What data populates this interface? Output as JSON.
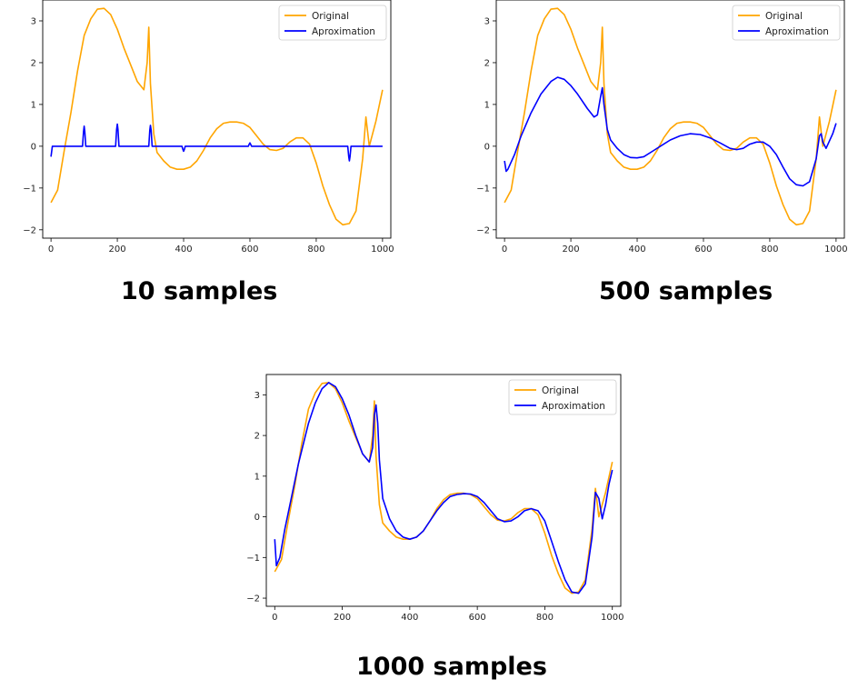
{
  "colors": {
    "original": "#ffa500",
    "approximation": "#0000ff",
    "axes": "#000000",
    "background": "#ffffff"
  },
  "legend_labels": [
    "Original",
    "Aproximation"
  ],
  "captions": [
    "10 samples",
    "500 samples",
    "1000 samples"
  ],
  "chart_data": [
    {
      "type": "line",
      "title": "",
      "caption": "10 samples",
      "xlim": [
        -25,
        1025
      ],
      "ylim": [
        -2.2,
        3.5
      ],
      "xticks": [
        "0",
        "200",
        "400",
        "600",
        "800",
        "1000"
      ],
      "yticks": [
        "-2",
        "-1",
        "0",
        "1",
        "2",
        "3"
      ],
      "legend_position": "top-right",
      "series": [
        {
          "name": "Original",
          "x": [
            0,
            20,
            40,
            60,
            80,
            100,
            120,
            140,
            160,
            180,
            200,
            220,
            240,
            260,
            280,
            290,
            295,
            300,
            310,
            320,
            340,
            360,
            380,
            400,
            420,
            440,
            460,
            480,
            500,
            520,
            540,
            560,
            580,
            600,
            620,
            640,
            660,
            680,
            700,
            720,
            740,
            760,
            780,
            800,
            820,
            840,
            860,
            880,
            900,
            920,
            940,
            950,
            960,
            980,
            1000
          ],
          "y": [
            -1.35,
            -1.05,
            -0.1,
            0.8,
            1.8,
            2.65,
            3.05,
            3.28,
            3.3,
            3.15,
            2.8,
            2.35,
            1.95,
            1.55,
            1.35,
            2.0,
            2.85,
            1.5,
            0.3,
            -0.15,
            -0.35,
            -0.5,
            -0.55,
            -0.55,
            -0.5,
            -0.35,
            -0.1,
            0.2,
            0.42,
            0.55,
            0.58,
            0.58,
            0.55,
            0.45,
            0.25,
            0.05,
            -0.08,
            -0.1,
            -0.05,
            0.1,
            0.2,
            0.2,
            0.05,
            -0.4,
            -0.95,
            -1.4,
            -1.75,
            -1.88,
            -1.85,
            -1.55,
            -0.3,
            0.7,
            0.0,
            0.6,
            1.35
          ]
        },
        {
          "name": "Aproximation",
          "x": [
            0,
            4,
            8,
            95,
            98,
            100,
            102,
            105,
            195,
            198,
            200,
            202,
            205,
            295,
            298,
            300,
            302,
            305,
            395,
            398,
            400,
            402,
            405,
            595,
            598,
            600,
            602,
            605,
            895,
            898,
            900,
            902,
            905,
            1000
          ],
          "y": [
            -0.25,
            0.0,
            0.0,
            0.0,
            0.35,
            0.48,
            0.35,
            0.0,
            0.0,
            0.4,
            0.53,
            0.4,
            0.0,
            0.0,
            0.38,
            0.5,
            0.38,
            0.0,
            0.0,
            -0.08,
            -0.12,
            -0.08,
            0.0,
            0.0,
            0.05,
            0.08,
            0.05,
            0.0,
            0.0,
            -0.25,
            -0.35,
            -0.25,
            0.0,
            0.0
          ]
        }
      ]
    },
    {
      "type": "line",
      "title": "",
      "caption": "500 samples",
      "xlim": [
        -25,
        1025
      ],
      "ylim": [
        -2.2,
        3.5
      ],
      "xticks": [
        "0",
        "200",
        "400",
        "600",
        "800",
        "1000"
      ],
      "yticks": [
        "-2",
        "-1",
        "0",
        "1",
        "2",
        "3"
      ],
      "legend_position": "top-right",
      "series": [
        {
          "name": "Original",
          "x": [
            0,
            20,
            40,
            60,
            80,
            100,
            120,
            140,
            160,
            180,
            200,
            220,
            240,
            260,
            280,
            290,
            295,
            300,
            310,
            320,
            340,
            360,
            380,
            400,
            420,
            440,
            460,
            480,
            500,
            520,
            540,
            560,
            580,
            600,
            620,
            640,
            660,
            680,
            700,
            720,
            740,
            760,
            780,
            800,
            820,
            840,
            860,
            880,
            900,
            920,
            940,
            950,
            960,
            980,
            1000
          ],
          "y": [
            -1.35,
            -1.05,
            -0.1,
            0.8,
            1.8,
            2.65,
            3.05,
            3.28,
            3.3,
            3.15,
            2.8,
            2.35,
            1.95,
            1.55,
            1.35,
            2.0,
            2.85,
            1.5,
            0.3,
            -0.15,
            -0.35,
            -0.5,
            -0.55,
            -0.55,
            -0.5,
            -0.35,
            -0.1,
            0.2,
            0.42,
            0.55,
            0.58,
            0.58,
            0.55,
            0.45,
            0.25,
            0.05,
            -0.08,
            -0.1,
            -0.05,
            0.1,
            0.2,
            0.2,
            0.05,
            -0.4,
            -0.95,
            -1.4,
            -1.75,
            -1.88,
            -1.85,
            -1.55,
            -0.3,
            0.7,
            0.0,
            0.6,
            1.35
          ]
        },
        {
          "name": "Aproximation",
          "x": [
            0,
            5,
            10,
            30,
            50,
            80,
            110,
            140,
            160,
            180,
            200,
            220,
            250,
            270,
            280,
            290,
            295,
            300,
            310,
            320,
            340,
            360,
            380,
            400,
            420,
            450,
            480,
            500,
            530,
            560,
            590,
            620,
            650,
            680,
            700,
            720,
            740,
            760,
            780,
            800,
            820,
            840,
            860,
            880,
            900,
            920,
            940,
            950,
            955,
            960,
            970,
            990,
            1000
          ],
          "y": [
            -0.35,
            -0.6,
            -0.55,
            -0.2,
            0.25,
            0.8,
            1.25,
            1.55,
            1.65,
            1.6,
            1.45,
            1.25,
            0.9,
            0.7,
            0.75,
            1.2,
            1.4,
            1.0,
            0.4,
            0.15,
            -0.05,
            -0.2,
            -0.27,
            -0.28,
            -0.25,
            -0.1,
            0.05,
            0.15,
            0.25,
            0.3,
            0.28,
            0.2,
            0.08,
            -0.05,
            -0.08,
            -0.05,
            0.05,
            0.1,
            0.1,
            0.0,
            -0.2,
            -0.5,
            -0.78,
            -0.92,
            -0.95,
            -0.85,
            -0.3,
            0.25,
            0.3,
            0.1,
            -0.05,
            0.3,
            0.55
          ]
        }
      ]
    },
    {
      "type": "line",
      "title": "",
      "caption": "1000 samples",
      "xlim": [
        -25,
        1025
      ],
      "ylim": [
        -2.2,
        3.5
      ],
      "xticks": [
        "0",
        "200",
        "400",
        "600",
        "800",
        "1000"
      ],
      "yticks": [
        "-2",
        "-1",
        "0",
        "1",
        "2",
        "3"
      ],
      "legend_position": "top-right",
      "series": [
        {
          "name": "Original",
          "x": [
            0,
            20,
            40,
            60,
            80,
            100,
            120,
            140,
            160,
            180,
            200,
            220,
            240,
            260,
            280,
            290,
            295,
            300,
            310,
            320,
            340,
            360,
            380,
            400,
            420,
            440,
            460,
            480,
            500,
            520,
            540,
            560,
            580,
            600,
            620,
            640,
            660,
            680,
            700,
            720,
            740,
            760,
            780,
            800,
            820,
            840,
            860,
            880,
            900,
            920,
            940,
            950,
            960,
            980,
            1000
          ],
          "y": [
            -1.35,
            -1.05,
            -0.1,
            0.8,
            1.8,
            2.65,
            3.05,
            3.28,
            3.3,
            3.15,
            2.8,
            2.35,
            1.95,
            1.55,
            1.35,
            2.0,
            2.85,
            1.5,
            0.3,
            -0.15,
            -0.35,
            -0.5,
            -0.55,
            -0.55,
            -0.5,
            -0.35,
            -0.1,
            0.2,
            0.42,
            0.55,
            0.58,
            0.58,
            0.55,
            0.45,
            0.25,
            0.05,
            -0.08,
            -0.1,
            -0.05,
            0.1,
            0.2,
            0.2,
            0.05,
            -0.4,
            -0.95,
            -1.4,
            -1.75,
            -1.88,
            -1.85,
            -1.55,
            -0.3,
            0.7,
            0.0,
            0.6,
            1.35
          ]
        },
        {
          "name": "Aproximation",
          "x": [
            0,
            5,
            15,
            30,
            50,
            70,
            100,
            120,
            140,
            160,
            180,
            200,
            220,
            240,
            260,
            280,
            290,
            295,
            300,
            305,
            310,
            320,
            340,
            360,
            380,
            400,
            420,
            440,
            460,
            480,
            500,
            520,
            540,
            560,
            580,
            600,
            620,
            640,
            660,
            680,
            700,
            720,
            740,
            760,
            780,
            800,
            820,
            840,
            860,
            880,
            900,
            920,
            940,
            950,
            960,
            970,
            980,
            990,
            1000
          ],
          "y": [
            -0.55,
            -1.2,
            -1.0,
            -0.3,
            0.5,
            1.3,
            2.3,
            2.8,
            3.15,
            3.3,
            3.2,
            2.9,
            2.5,
            2.0,
            1.55,
            1.35,
            1.7,
            2.5,
            2.75,
            2.3,
            1.4,
            0.45,
            -0.05,
            -0.35,
            -0.5,
            -0.55,
            -0.5,
            -0.35,
            -0.1,
            0.15,
            0.35,
            0.5,
            0.55,
            0.57,
            0.56,
            0.5,
            0.35,
            0.15,
            -0.05,
            -0.12,
            -0.1,
            0.0,
            0.15,
            0.2,
            0.15,
            -0.1,
            -0.6,
            -1.1,
            -1.55,
            -1.85,
            -1.88,
            -1.65,
            -0.5,
            0.6,
            0.45,
            -0.05,
            0.3,
            0.8,
            1.15
          ]
        }
      ]
    }
  ]
}
